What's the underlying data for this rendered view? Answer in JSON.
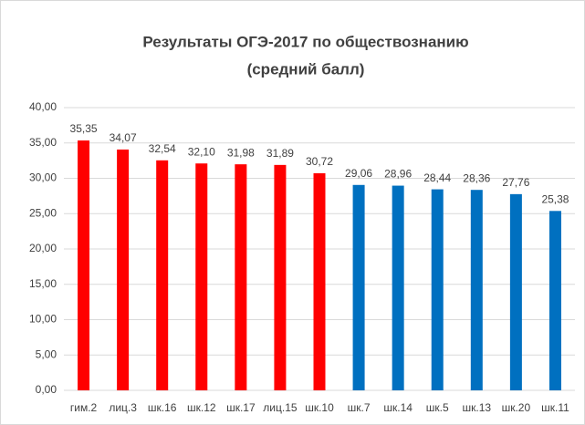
{
  "chart_data": {
    "type": "bar",
    "title": "Результаты ОГЭ-2017 по обществознанию",
    "subtitle": "(средний балл)",
    "categories": [
      "гим.2",
      "лиц.3",
      "шк.16",
      "шк.12",
      "шк.17",
      "лиц.15",
      "шк.10",
      "шк.7",
      "шк.14",
      "шк.5",
      "шк.13",
      "шк.20",
      "шк.11"
    ],
    "values": [
      35.35,
      34.07,
      32.54,
      32.1,
      31.98,
      31.89,
      30.72,
      29.06,
      28.96,
      28.44,
      28.36,
      27.76,
      25.38
    ],
    "value_labels": [
      "35,35",
      "34,07",
      "32,54",
      "32,10",
      "31,98",
      "31,89",
      "30,72",
      "29,06",
      "28,96",
      "28,44",
      "28,36",
      "27,76",
      "25,38"
    ],
    "colors": [
      "#ff0000",
      "#ff0000",
      "#ff0000",
      "#ff0000",
      "#ff0000",
      "#ff0000",
      "#ff0000",
      "#0070c0",
      "#0070c0",
      "#0070c0",
      "#0070c0",
      "#0070c0",
      "#0070c0"
    ],
    "ylim": [
      0,
      40
    ],
    "yticks": [
      {
        "value": 0,
        "label": "0,00"
      },
      {
        "value": 5,
        "label": "5,00"
      },
      {
        "value": 10,
        "label": "10,00"
      },
      {
        "value": 15,
        "label": "15,00"
      },
      {
        "value": 20,
        "label": "20,00"
      },
      {
        "value": 25,
        "label": "25,00"
      },
      {
        "value": 30,
        "label": "30,00"
      },
      {
        "value": 35,
        "label": "35,00"
      },
      {
        "value": 40,
        "label": "40,00"
      }
    ],
    "grid": true
  }
}
